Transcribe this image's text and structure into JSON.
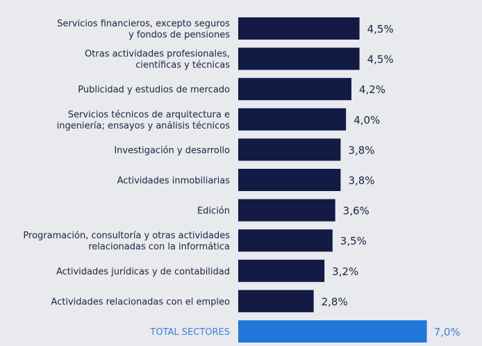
{
  "chart_data": {
    "type": "bar",
    "orientation": "horizontal",
    "unit": "%",
    "categories": [
      [
        "Servicios financieros, excepto seguros",
        "y fondos de pensiones"
      ],
      [
        "Otras actividades profesionales,",
        "científicas y técnicas"
      ],
      [
        "Publicidad y estudios de mercado"
      ],
      [
        "Servicios técnicos de arquitectura e",
        "ingeniería; ensayos y análisis técnicos"
      ],
      [
        "Investigación y desarrollo"
      ],
      [
        "Actividades inmobiliarias"
      ],
      [
        "Edición"
      ],
      [
        "Programación, consultoría y otras actividades",
        "relacionadas con la informática"
      ],
      [
        "Actividades jurídicas y de contabilidad"
      ],
      [
        "Actividades relacionadas con el empleo"
      ],
      [
        "TOTAL SECTORES"
      ]
    ],
    "values": [
      4.5,
      4.5,
      4.2,
      4.0,
      3.8,
      3.8,
      3.6,
      3.5,
      3.2,
      2.8,
      7.0
    ],
    "value_labels": [
      "4,5%",
      "4,5%",
      "4,2%",
      "4,0%",
      "3,8%",
      "3,8%",
      "3,6%",
      "3,5%",
      "3,2%",
      "2,8%",
      "7,0%"
    ],
    "highlight_index": 10,
    "colors": {
      "bar": "#131a44",
      "highlight": "#2176d9",
      "background": "#e9eaee"
    },
    "xlim": [
      0,
      7.0
    ],
    "grid": false
  }
}
